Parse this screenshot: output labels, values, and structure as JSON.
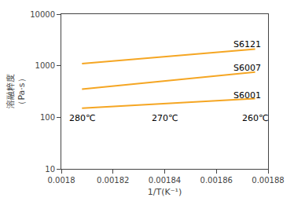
{
  "chart_data": {
    "type": "line",
    "xlabel": "1/T(K⁻¹)",
    "ylabel": "溶融粹度\n（Pa·s）",
    "log": "y",
    "grid": false,
    "x": [
      0.001808,
      0.001875
    ],
    "series": [
      {
        "color": "#F5A623",
        "values": [
          1100,
          2100
        ]
      },
      {
        "color": "#F5A623",
        "values": [
          350,
          750
        ]
      },
      {
        "color": "#F5A623",
        "values": [
          150,
          230
        ]
      }
    ],
    "annotations": [
      {
        "text": "S6121",
        "x": 0.001872,
        "y": 2600
      },
      {
        "text": "S6007",
        "x": 0.001872,
        "y": 900
      },
      {
        "text": "S6001",
        "x": 0.001872,
        "y": 270
      },
      {
        "text": "280℃",
        "x": 0.001808,
        "y": 95
      },
      {
        "text": "270℃",
        "x": 0.00184,
        "y": 95
      },
      {
        "text": "260℃",
        "x": 0.001875,
        "y": 95
      }
    ],
    "xlim": [
      0.0018,
      0.00188
    ],
    "xticks": [
      0.0018,
      0.00182,
      0.00184,
      0.00186,
      0.00188
    ],
    "ylim": [
      10,
      10000
    ],
    "yticks": [
      10,
      100,
      1000,
      10000
    ]
  }
}
